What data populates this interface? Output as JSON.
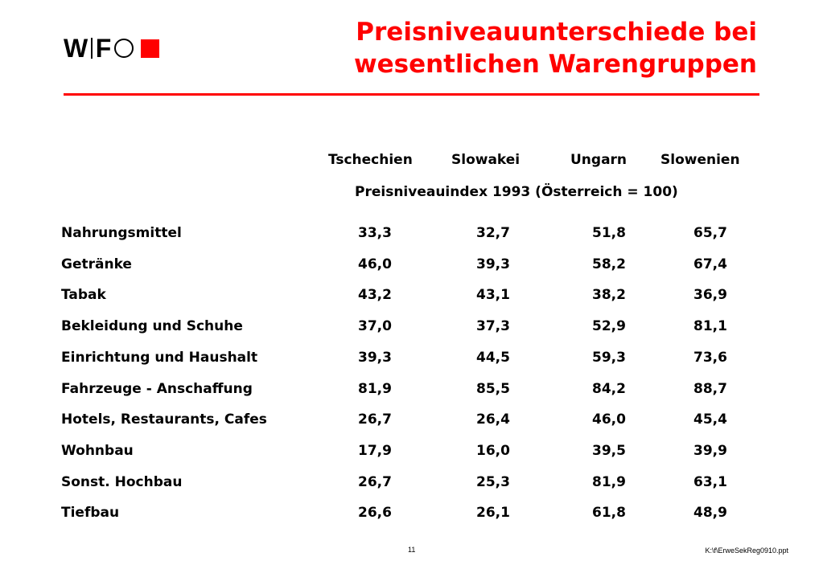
{
  "logo": {
    "letters": [
      "W",
      "F"
    ],
    "text": "WIFO",
    "square_color": "#ff0000"
  },
  "title": {
    "line1": "Preisniveauunterschiede bei",
    "line2": "wesentlichen Warengruppen",
    "color": "#ff0000"
  },
  "rule_color": "#ff0000",
  "table": {
    "columns": [
      "Tschechien",
      "Slowakei",
      "Ungarn",
      "Slowenien"
    ],
    "subheader": "Preisniveauindex 1993 (Österreich = 100)",
    "rows": [
      {
        "label": "Nahrungsmittel",
        "values": [
          "33,3",
          "32,7",
          "51,8",
          "65,7"
        ]
      },
      {
        "label": "Getränke",
        "values": [
          "46,0",
          "39,3",
          "58,2",
          "67,4"
        ]
      },
      {
        "label": "Tabak",
        "values": [
          "43,2",
          "43,1",
          "38,2",
          "36,9"
        ]
      },
      {
        "label": "Bekleidung und Schuhe",
        "values": [
          "37,0",
          "37,3",
          "52,9",
          "81,1"
        ]
      },
      {
        "label": "Einrichtung und Haushalt",
        "values": [
          "39,3",
          "44,5",
          "59,3",
          "73,6"
        ]
      },
      {
        "label": "Fahrzeuge - Anschaffung",
        "values": [
          "81,9",
          "85,5",
          "84,2",
          "88,7"
        ]
      },
      {
        "label": "Hotels, Restaurants, Cafes",
        "values": [
          "26,7",
          "26,4",
          "46,0",
          "45,4"
        ]
      },
      {
        "label": "Wohnbau",
        "values": [
          "17,9",
          "16,0",
          "39,5",
          "39,9"
        ]
      },
      {
        "label": "Sonst. Hochbau",
        "values": [
          "26,7",
          "25,3",
          "81,9",
          "63,1"
        ]
      },
      {
        "label": "Tiefbau",
        "values": [
          "26,6",
          "26,1",
          "61,8",
          "48,9"
        ]
      }
    ]
  },
  "footer": {
    "page_number": "11",
    "file_path": "K:\\f\\ErweSekReg0910.ppt"
  }
}
